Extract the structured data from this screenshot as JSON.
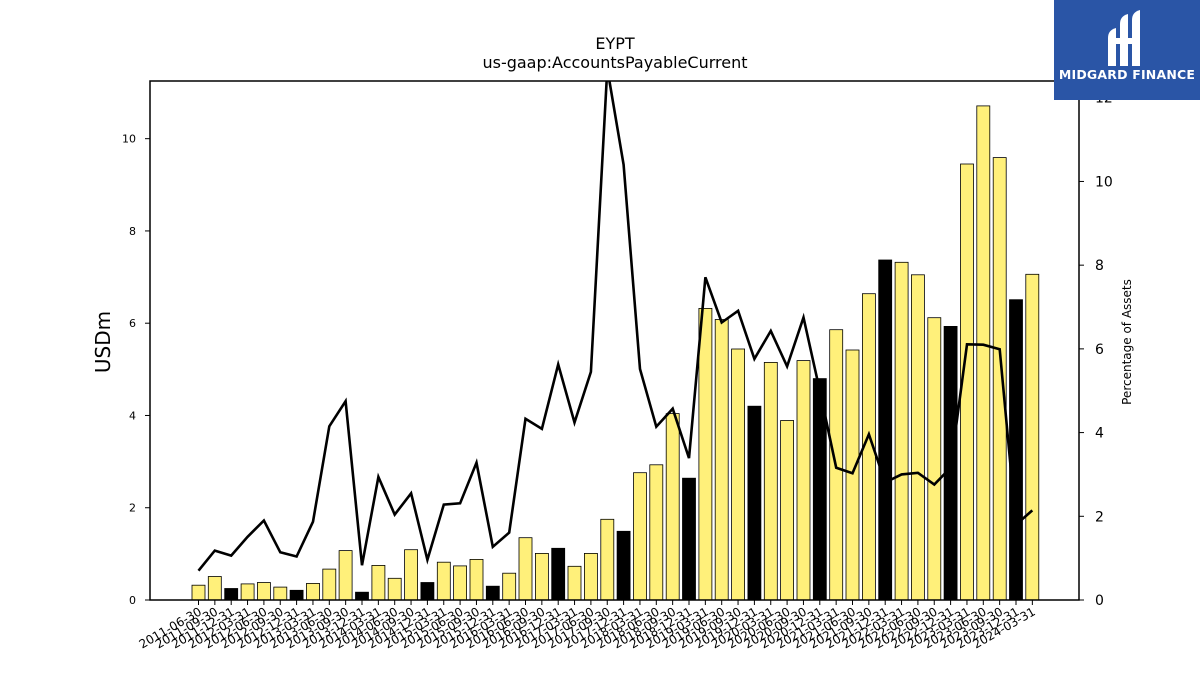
{
  "chart_data": {
    "type": "bar",
    "title": "EYPT",
    "subtitle": "us-gaap:AccountsPayableCurrent",
    "ylabel": "USDm",
    "y2label": "Percentage of Assets",
    "ylim": [
      0,
      11.25
    ],
    "y2lim": [
      0,
      12.4
    ],
    "yticks": [
      0,
      2,
      4,
      6,
      8,
      10
    ],
    "y2ticks": [
      0,
      2,
      4,
      6,
      8,
      10,
      12
    ],
    "categories": [
      "2011-06-30",
      "2011-09-30",
      "2011-12-31",
      "2012-03-31",
      "2012-06-30",
      "2012-09-30",
      "2012-12-31",
      "2013-03-31",
      "2013-06-30",
      "2013-09-30",
      "2013-12-31",
      "2014-03-31",
      "2014-06-30",
      "2014-09-30",
      "2014-12-31",
      "2015-03-31",
      "2015-06-30",
      "2015-09-30",
      "2015-12-31",
      "2016-03-31",
      "2016-06-30",
      "2016-09-30",
      "2016-12-31",
      "2017-03-31",
      "2017-06-30",
      "2017-09-30",
      "2017-12-31",
      "2018-03-31",
      "2018-06-30",
      "2018-09-30",
      "2018-12-31",
      "2019-03-31",
      "2019-06-30",
      "2019-09-30",
      "2019-12-31",
      "2020-03-31",
      "2020-06-30",
      "2020-09-30",
      "2020-12-31",
      "2021-03-31",
      "2021-06-30",
      "2021-09-30",
      "2021-12-31",
      "2022-03-31",
      "2022-06-30",
      "2022-09-30",
      "2022-12-31",
      "2023-03-31",
      "2023-06-30",
      "2023-09-30",
      "2023-12-31",
      "2024-03-31"
    ],
    "series": [
      {
        "kind": "bar",
        "axis": "left",
        "values": [
          0.32,
          0.51,
          0.25,
          0.35,
          0.38,
          0.28,
          0.21,
          0.36,
          0.67,
          1.07,
          0.17,
          0.75,
          0.47,
          1.09,
          0.38,
          0.82,
          0.74,
          0.88,
          0.3,
          0.58,
          1.35,
          1.01,
          1.12,
          0.73,
          1.01,
          1.75,
          1.49,
          2.76,
          2.93,
          4.04,
          2.64,
          6.32,
          6.08,
          5.44,
          4.2,
          5.15,
          3.89,
          5.19,
          4.8,
          5.86,
          5.42,
          6.64,
          7.37,
          7.32,
          7.05,
          6.12,
          5.93,
          9.45,
          10.71,
          9.59,
          6.51,
          7.06
        ],
        "colors": [
          "#fff07a",
          "#fff07a",
          "#000000",
          "#fff07a",
          "#fff07a",
          "#fff07a",
          "#000000",
          "#fff07a",
          "#fff07a",
          "#fff07a",
          "#000000",
          "#fff07a",
          "#fff07a",
          "#fff07a",
          "#000000",
          "#fff07a",
          "#fff07a",
          "#fff07a",
          "#000000",
          "#fff07a",
          "#fff07a",
          "#fff07a",
          "#000000",
          "#fff07a",
          "#fff07a",
          "#fff07a",
          "#000000",
          "#fff07a",
          "#fff07a",
          "#fff07a",
          "#000000",
          "#fff07a",
          "#fff07a",
          "#fff07a",
          "#000000",
          "#fff07a",
          "#fff07a",
          "#fff07a",
          "#000000",
          "#fff07a",
          "#fff07a",
          "#fff07a",
          "#000000",
          "#fff07a",
          "#fff07a",
          "#fff07a",
          "#000000",
          "#fff07a",
          "#fff07a",
          "#fff07a",
          "#000000",
          "#fff07a"
        ]
      },
      {
        "kind": "line",
        "axis": "right",
        "values": [
          0.7,
          1.18,
          1.06,
          1.51,
          1.9,
          1.14,
          1.04,
          1.87,
          4.15,
          4.75,
          0.83,
          2.94,
          2.04,
          2.55,
          0.96,
          2.28,
          2.31,
          3.28,
          1.27,
          1.61,
          4.33,
          4.09,
          5.63,
          4.24,
          5.45,
          12.7,
          10.4,
          5.52,
          4.14,
          4.57,
          3.39,
          7.71,
          6.63,
          6.91,
          5.76,
          6.43,
          5.58,
          6.75,
          5.0,
          3.16,
          3.03,
          3.96,
          2.81,
          3.0,
          3.04,
          2.76,
          3.16,
          6.11,
          6.1,
          5.99,
          1.8,
          2.14
        ]
      }
    ],
    "bar_color": "#fff07a",
    "bar_alt_color": "#000000",
    "line_color": "#000000",
    "grid": false,
    "legend": "none"
  },
  "logo": {
    "text": "MIDGARD FINANCE",
    "background": "#2a55a6",
    "icon": "midgard-logo-icon"
  }
}
